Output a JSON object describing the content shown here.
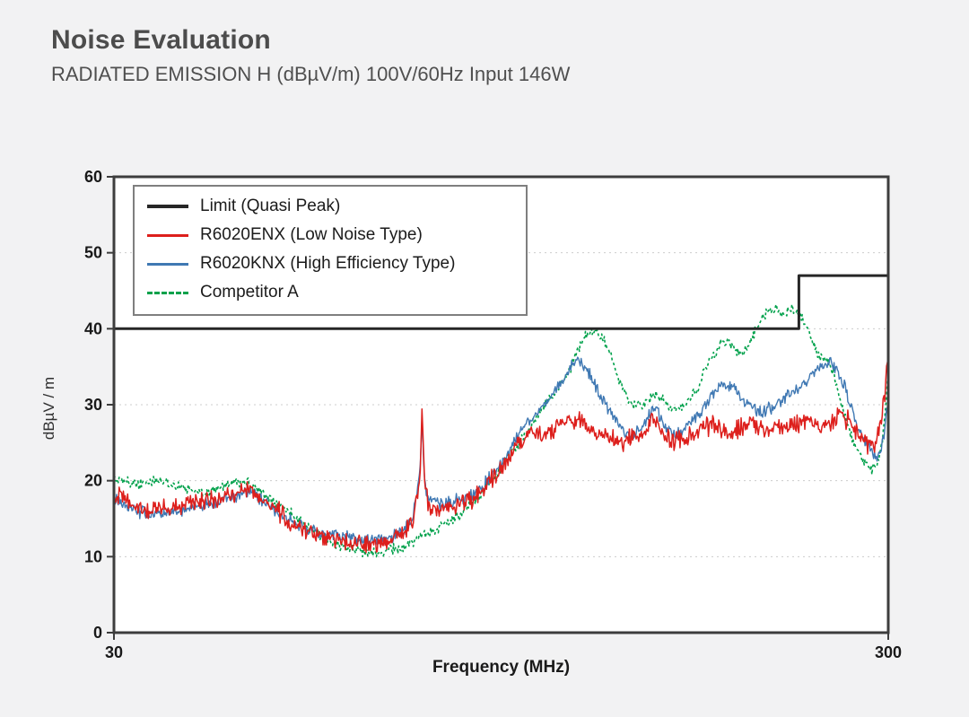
{
  "header": {
    "title": "Noise Evaluation",
    "subtitle": "RADIATED EMISSION H (dBµV/m) 100V/60Hz Input 146W"
  },
  "chart_data": {
    "type": "line",
    "title": "",
    "xlabel": "Frequency (MHz)",
    "ylabel": "dBµV / m",
    "x_scale": "log",
    "xlim": [
      30,
      300
    ],
    "ylim": [
      0,
      60
    ],
    "y_ticks": [
      0,
      10,
      20,
      30,
      40,
      50,
      60
    ],
    "x_ticks": [
      30,
      300
    ],
    "x_tick_labels": [
      "30",
      "300"
    ],
    "grid": "horizontal-dashed",
    "legend_position": "top-left",
    "series": [
      {
        "name": "Limit (Quasi Peak)",
        "color": "#262626",
        "style": "solid",
        "width": 3,
        "noise": 0,
        "points": [
          [
            30,
            40
          ],
          [
            230,
            40
          ],
          [
            230,
            47
          ],
          [
            300,
            47
          ]
        ]
      },
      {
        "name": "R6020ENX (Low Noise Type)",
        "color": "#dd1f1c",
        "style": "solid",
        "width": 1.5,
        "noise": 1.5,
        "points": [
          [
            30,
            18.5
          ],
          [
            32,
            16.5
          ],
          [
            34,
            16
          ],
          [
            36,
            16.5
          ],
          [
            38,
            17
          ],
          [
            40,
            17.5
          ],
          [
            43,
            18.5
          ],
          [
            45,
            19
          ],
          [
            47,
            17.5
          ],
          [
            50,
            15
          ],
          [
            53,
            13.5
          ],
          [
            56,
            12.5
          ],
          [
            60,
            12
          ],
          [
            64,
            11.5
          ],
          [
            68,
            12
          ],
          [
            71,
            13
          ],
          [
            73,
            14.5
          ],
          [
            74.5,
            20
          ],
          [
            75,
            29
          ],
          [
            75.5,
            20
          ],
          [
            76.5,
            16.5
          ],
          [
            80,
            16.5
          ],
          [
            84,
            17
          ],
          [
            88,
            18
          ],
          [
            92,
            20
          ],
          [
            96,
            22.5
          ],
          [
            100,
            25
          ],
          [
            104,
            26.5
          ],
          [
            108,
            26
          ],
          [
            112,
            27
          ],
          [
            116,
            28
          ],
          [
            120,
            28
          ],
          [
            124,
            27
          ],
          [
            128,
            26
          ],
          [
            132,
            25.5
          ],
          [
            136,
            25
          ],
          [
            140,
            25.5
          ],
          [
            145,
            26.5
          ],
          [
            149,
            28.5
          ],
          [
            151,
            28
          ],
          [
            154,
            26
          ],
          [
            158,
            25
          ],
          [
            162,
            25.5
          ],
          [
            166,
            26
          ],
          [
            170,
            26.5
          ],
          [
            174,
            27
          ],
          [
            178,
            27.5
          ],
          [
            182,
            27
          ],
          [
            186,
            26
          ],
          [
            190,
            26.5
          ],
          [
            195,
            27
          ],
          [
            200,
            27.5
          ],
          [
            205,
            27
          ],
          [
            210,
            26.5
          ],
          [
            215,
            27
          ],
          [
            220,
            27.5
          ],
          [
            225,
            27
          ],
          [
            230,
            27.5
          ],
          [
            235,
            28
          ],
          [
            240,
            27.5
          ],
          [
            245,
            27
          ],
          [
            250,
            27.5
          ],
          [
            255,
            28
          ],
          [
            260,
            28.5
          ],
          [
            265,
            28
          ],
          [
            270,
            27.5
          ],
          [
            273,
            26.5
          ],
          [
            277,
            25.5
          ],
          [
            281,
            25
          ],
          [
            285,
            24.5
          ],
          [
            289,
            25
          ],
          [
            293,
            27
          ],
          [
            296,
            30
          ],
          [
            300,
            37
          ]
        ]
      },
      {
        "name": "R6020KNX (High Efficiency Type)",
        "color": "#3f78b3",
        "style": "solid",
        "width": 1.4,
        "noise": 1.0,
        "points": [
          [
            30,
            17.5
          ],
          [
            32,
            16
          ],
          [
            34,
            15.5
          ],
          [
            36,
            16
          ],
          [
            38,
            16.5
          ],
          [
            40,
            17
          ],
          [
            43,
            18
          ],
          [
            45,
            18.5
          ],
          [
            47,
            17
          ],
          [
            50,
            15
          ],
          [
            53,
            13.8
          ],
          [
            56,
            13
          ],
          [
            60,
            12.5
          ],
          [
            64,
            12
          ],
          [
            68,
            12.5
          ],
          [
            71,
            13.5
          ],
          [
            73,
            15
          ],
          [
            74.5,
            21
          ],
          [
            75,
            28
          ],
          [
            75.5,
            20
          ],
          [
            76.5,
            17.5
          ],
          [
            80,
            17
          ],
          [
            84,
            17.5
          ],
          [
            88,
            18.5
          ],
          [
            92,
            20.5
          ],
          [
            96,
            23
          ],
          [
            100,
            26
          ],
          [
            104,
            28
          ],
          [
            108,
            30
          ],
          [
            112,
            32
          ],
          [
            116,
            34.5
          ],
          [
            119,
            35.8
          ],
          [
            122,
            35
          ],
          [
            125,
            33
          ],
          [
            128,
            31
          ],
          [
            131,
            29
          ],
          [
            134,
            27.5
          ],
          [
            137,
            26.5
          ],
          [
            140,
            26
          ],
          [
            144,
            27
          ],
          [
            148,
            29
          ],
          [
            150,
            30
          ],
          [
            152,
            28.5
          ],
          [
            155,
            27
          ],
          [
            158,
            26
          ],
          [
            162,
            26.5
          ],
          [
            166,
            27.5
          ],
          [
            170,
            28.5
          ],
          [
            174,
            30
          ],
          [
            178,
            31.5
          ],
          [
            182,
            32.5
          ],
          [
            186,
            32.5
          ],
          [
            190,
            32
          ],
          [
            194,
            31
          ],
          [
            198,
            30
          ],
          [
            202,
            29.5
          ],
          [
            206,
            29
          ],
          [
            210,
            29.5
          ],
          [
            215,
            30
          ],
          [
            220,
            31
          ],
          [
            225,
            31.5
          ],
          [
            230,
            32
          ],
          [
            235,
            33
          ],
          [
            240,
            34
          ],
          [
            245,
            35
          ],
          [
            250,
            35.5
          ],
          [
            254,
            35.5
          ],
          [
            258,
            34.5
          ],
          [
            262,
            33
          ],
          [
            266,
            31
          ],
          [
            270,
            29
          ],
          [
            274,
            27
          ],
          [
            278,
            25.5
          ],
          [
            282,
            24.5
          ],
          [
            286,
            23.5
          ],
          [
            290,
            23
          ],
          [
            294,
            24
          ],
          [
            297,
            27
          ],
          [
            300,
            31
          ]
        ]
      },
      {
        "name": "Competitor A",
        "color": "#00a14b",
        "style": "dashed",
        "width": 1.6,
        "noise": 0.8,
        "points": [
          [
            30,
            20.5
          ],
          [
            32,
            19.5
          ],
          [
            34,
            20
          ],
          [
            36,
            19.5
          ],
          [
            38,
            18.5
          ],
          [
            40,
            18.5
          ],
          [
            42,
            19.5
          ],
          [
            44,
            20
          ],
          [
            46,
            19
          ],
          [
            48,
            17.5
          ],
          [
            51,
            15.5
          ],
          [
            54,
            13.5
          ],
          [
            57,
            12
          ],
          [
            60,
            11
          ],
          [
            63,
            10.5
          ],
          [
            66,
            10.5
          ],
          [
            69,
            11
          ],
          [
            72,
            11.5
          ],
          [
            75,
            13
          ],
          [
            78,
            13.5
          ],
          [
            81,
            14.5
          ],
          [
            85,
            16
          ],
          [
            89,
            18
          ],
          [
            93,
            20.5
          ],
          [
            97,
            23
          ],
          [
            100,
            25
          ],
          [
            104,
            27.5
          ],
          [
            108,
            30
          ],
          [
            111,
            31.5
          ],
          [
            114,
            33
          ],
          [
            117,
            35
          ],
          [
            119,
            37
          ],
          [
            121,
            38.5
          ],
          [
            123,
            39.5
          ],
          [
            126,
            39.5
          ],
          [
            129,
            38.5
          ],
          [
            132,
            36
          ],
          [
            135,
            33
          ],
          [
            138,
            31
          ],
          [
            141,
            30
          ],
          [
            145,
            30
          ],
          [
            148,
            31
          ],
          [
            151,
            31.5
          ],
          [
            154,
            30.5
          ],
          [
            158,
            29.5
          ],
          [
            162,
            29.5
          ],
          [
            166,
            30.5
          ],
          [
            170,
            32
          ],
          [
            174,
            34.5
          ],
          [
            178,
            36.5
          ],
          [
            182,
            38
          ],
          [
            185,
            38.5
          ],
          [
            188,
            38
          ],
          [
            191,
            37
          ],
          [
            194,
            36.5
          ],
          [
            197,
            37.5
          ],
          [
            200,
            39
          ],
          [
            204,
            40.5
          ],
          [
            208,
            42
          ],
          [
            212,
            42.5
          ],
          [
            216,
            42.5
          ],
          [
            220,
            42
          ],
          [
            224,
            42.5
          ],
          [
            228,
            42.5
          ],
          [
            232,
            41.5
          ],
          [
            236,
            40
          ],
          [
            240,
            38
          ],
          [
            244,
            36.5
          ],
          [
            248,
            36
          ],
          [
            252,
            35.5
          ],
          [
            255,
            34
          ],
          [
            258,
            32
          ],
          [
            262,
            29.5
          ],
          [
            266,
            27.5
          ],
          [
            270,
            25.5
          ],
          [
            274,
            24
          ],
          [
            278,
            22.5
          ],
          [
            282,
            22
          ],
          [
            286,
            21.5
          ],
          [
            290,
            22
          ],
          [
            294,
            24.5
          ],
          [
            297,
            28
          ],
          [
            300,
            34.5
          ]
        ]
      }
    ]
  }
}
